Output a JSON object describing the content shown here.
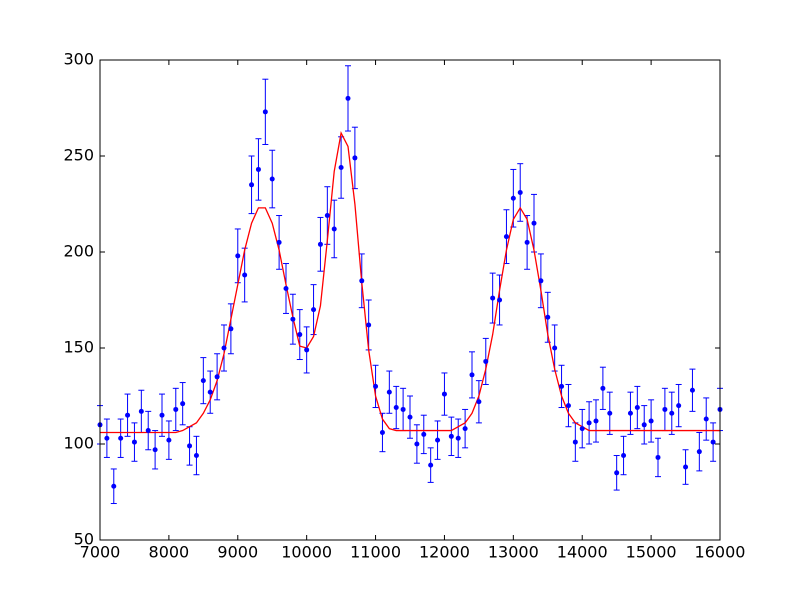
{
  "chart_data": {
    "type": "scatter",
    "x": [
      7000,
      7100,
      7200,
      7300,
      7400,
      7500,
      7600,
      7700,
      7800,
      7900,
      8000,
      8100,
      8200,
      8300,
      8400,
      8500,
      8600,
      8700,
      8800,
      8900,
      9000,
      9100,
      9200,
      9300,
      9400,
      9500,
      9600,
      9700,
      9800,
      9900,
      10000,
      10100,
      10200,
      10300,
      10400,
      10500,
      10600,
      10700,
      10800,
      10900,
      11000,
      11100,
      11200,
      11300,
      11400,
      11500,
      11600,
      11700,
      11800,
      11900,
      12000,
      12100,
      12200,
      12300,
      12400,
      12500,
      12600,
      12700,
      12800,
      12900,
      13000,
      13100,
      13200,
      13300,
      13400,
      13500,
      13600,
      13700,
      13800,
      13900,
      14000,
      14100,
      14200,
      14300,
      14400,
      14500,
      14600,
      14700,
      14800,
      14900,
      15000,
      15100,
      15200,
      15300,
      15400,
      15500,
      15600,
      15700,
      15800,
      15900,
      16000
    ],
    "points": {
      "color": "#0000ff",
      "values": [
        110,
        103,
        78,
        103,
        115,
        101,
        117,
        107,
        97,
        115,
        102,
        118,
        121,
        99,
        94,
        133,
        127,
        135,
        150,
        160,
        198,
        188,
        235,
        243,
        273,
        238,
        205,
        181,
        165,
        157,
        149,
        170,
        204,
        219,
        212,
        244,
        280,
        249,
        185,
        162,
        130,
        106,
        127,
        119,
        118,
        114,
        100,
        105,
        89,
        102,
        126,
        104,
        103,
        108,
        136,
        122,
        143,
        176,
        175,
        208,
        228,
        231,
        205,
        215,
        185,
        166,
        150,
        130,
        120,
        101,
        108,
        111,
        112,
        129,
        116,
        85,
        94,
        116,
        119,
        110,
        112,
        93,
        118,
        116,
        120,
        88,
        128,
        96,
        113,
        101,
        118
      ],
      "errors": [
        10,
        10,
        9,
        10,
        11,
        10,
        11,
        10,
        10,
        11,
        10,
        11,
        11,
        10,
        10,
        12,
        11,
        12,
        12,
        13,
        14,
        14,
        15,
        16,
        17,
        15,
        14,
        13,
        13,
        13,
        12,
        13,
        14,
        15,
        15,
        16,
        17,
        16,
        14,
        13,
        11,
        10,
        11,
        11,
        11,
        11,
        10,
        10,
        9,
        10,
        11,
        10,
        10,
        10,
        12,
        11,
        12,
        13,
        13,
        14,
        15,
        15,
        14,
        15,
        14,
        13,
        12,
        11,
        11,
        10,
        10,
        11,
        11,
        11,
        11,
        9,
        10,
        11,
        11,
        10,
        11,
        10,
        11,
        11,
        11,
        9,
        11,
        10,
        11,
        10,
        11
      ]
    },
    "fit": {
      "color": "#ff0000",
      "values": [
        106,
        106,
        106,
        106,
        106,
        106,
        106,
        106,
        106,
        106,
        106,
        106,
        107,
        109,
        111,
        116,
        123,
        133,
        147,
        165,
        183,
        201,
        215,
        223,
        223,
        215,
        201,
        183,
        166,
        151,
        150,
        156,
        172,
        206,
        242,
        262,
        255,
        225,
        184,
        149,
        125,
        113,
        108,
        107,
        107,
        107,
        107,
        107,
        107,
        107,
        107,
        107,
        109,
        111,
        116,
        125,
        139,
        157,
        180,
        201,
        217,
        223,
        217,
        201,
        180,
        157,
        139,
        125,
        116,
        111,
        109,
        107,
        107,
        107,
        107,
        107,
        107,
        107,
        107,
        107,
        107,
        107,
        107,
        107,
        107,
        107,
        107,
        107,
        107,
        107,
        107
      ]
    },
    "xlim": [
      7000,
      16000
    ],
    "ylim": [
      50,
      300
    ],
    "xticks": [
      7000,
      8000,
      9000,
      10000,
      11000,
      12000,
      13000,
      14000,
      15000,
      16000
    ],
    "yticks": [
      50,
      100,
      150,
      200,
      250,
      300
    ],
    "grid": false
  }
}
